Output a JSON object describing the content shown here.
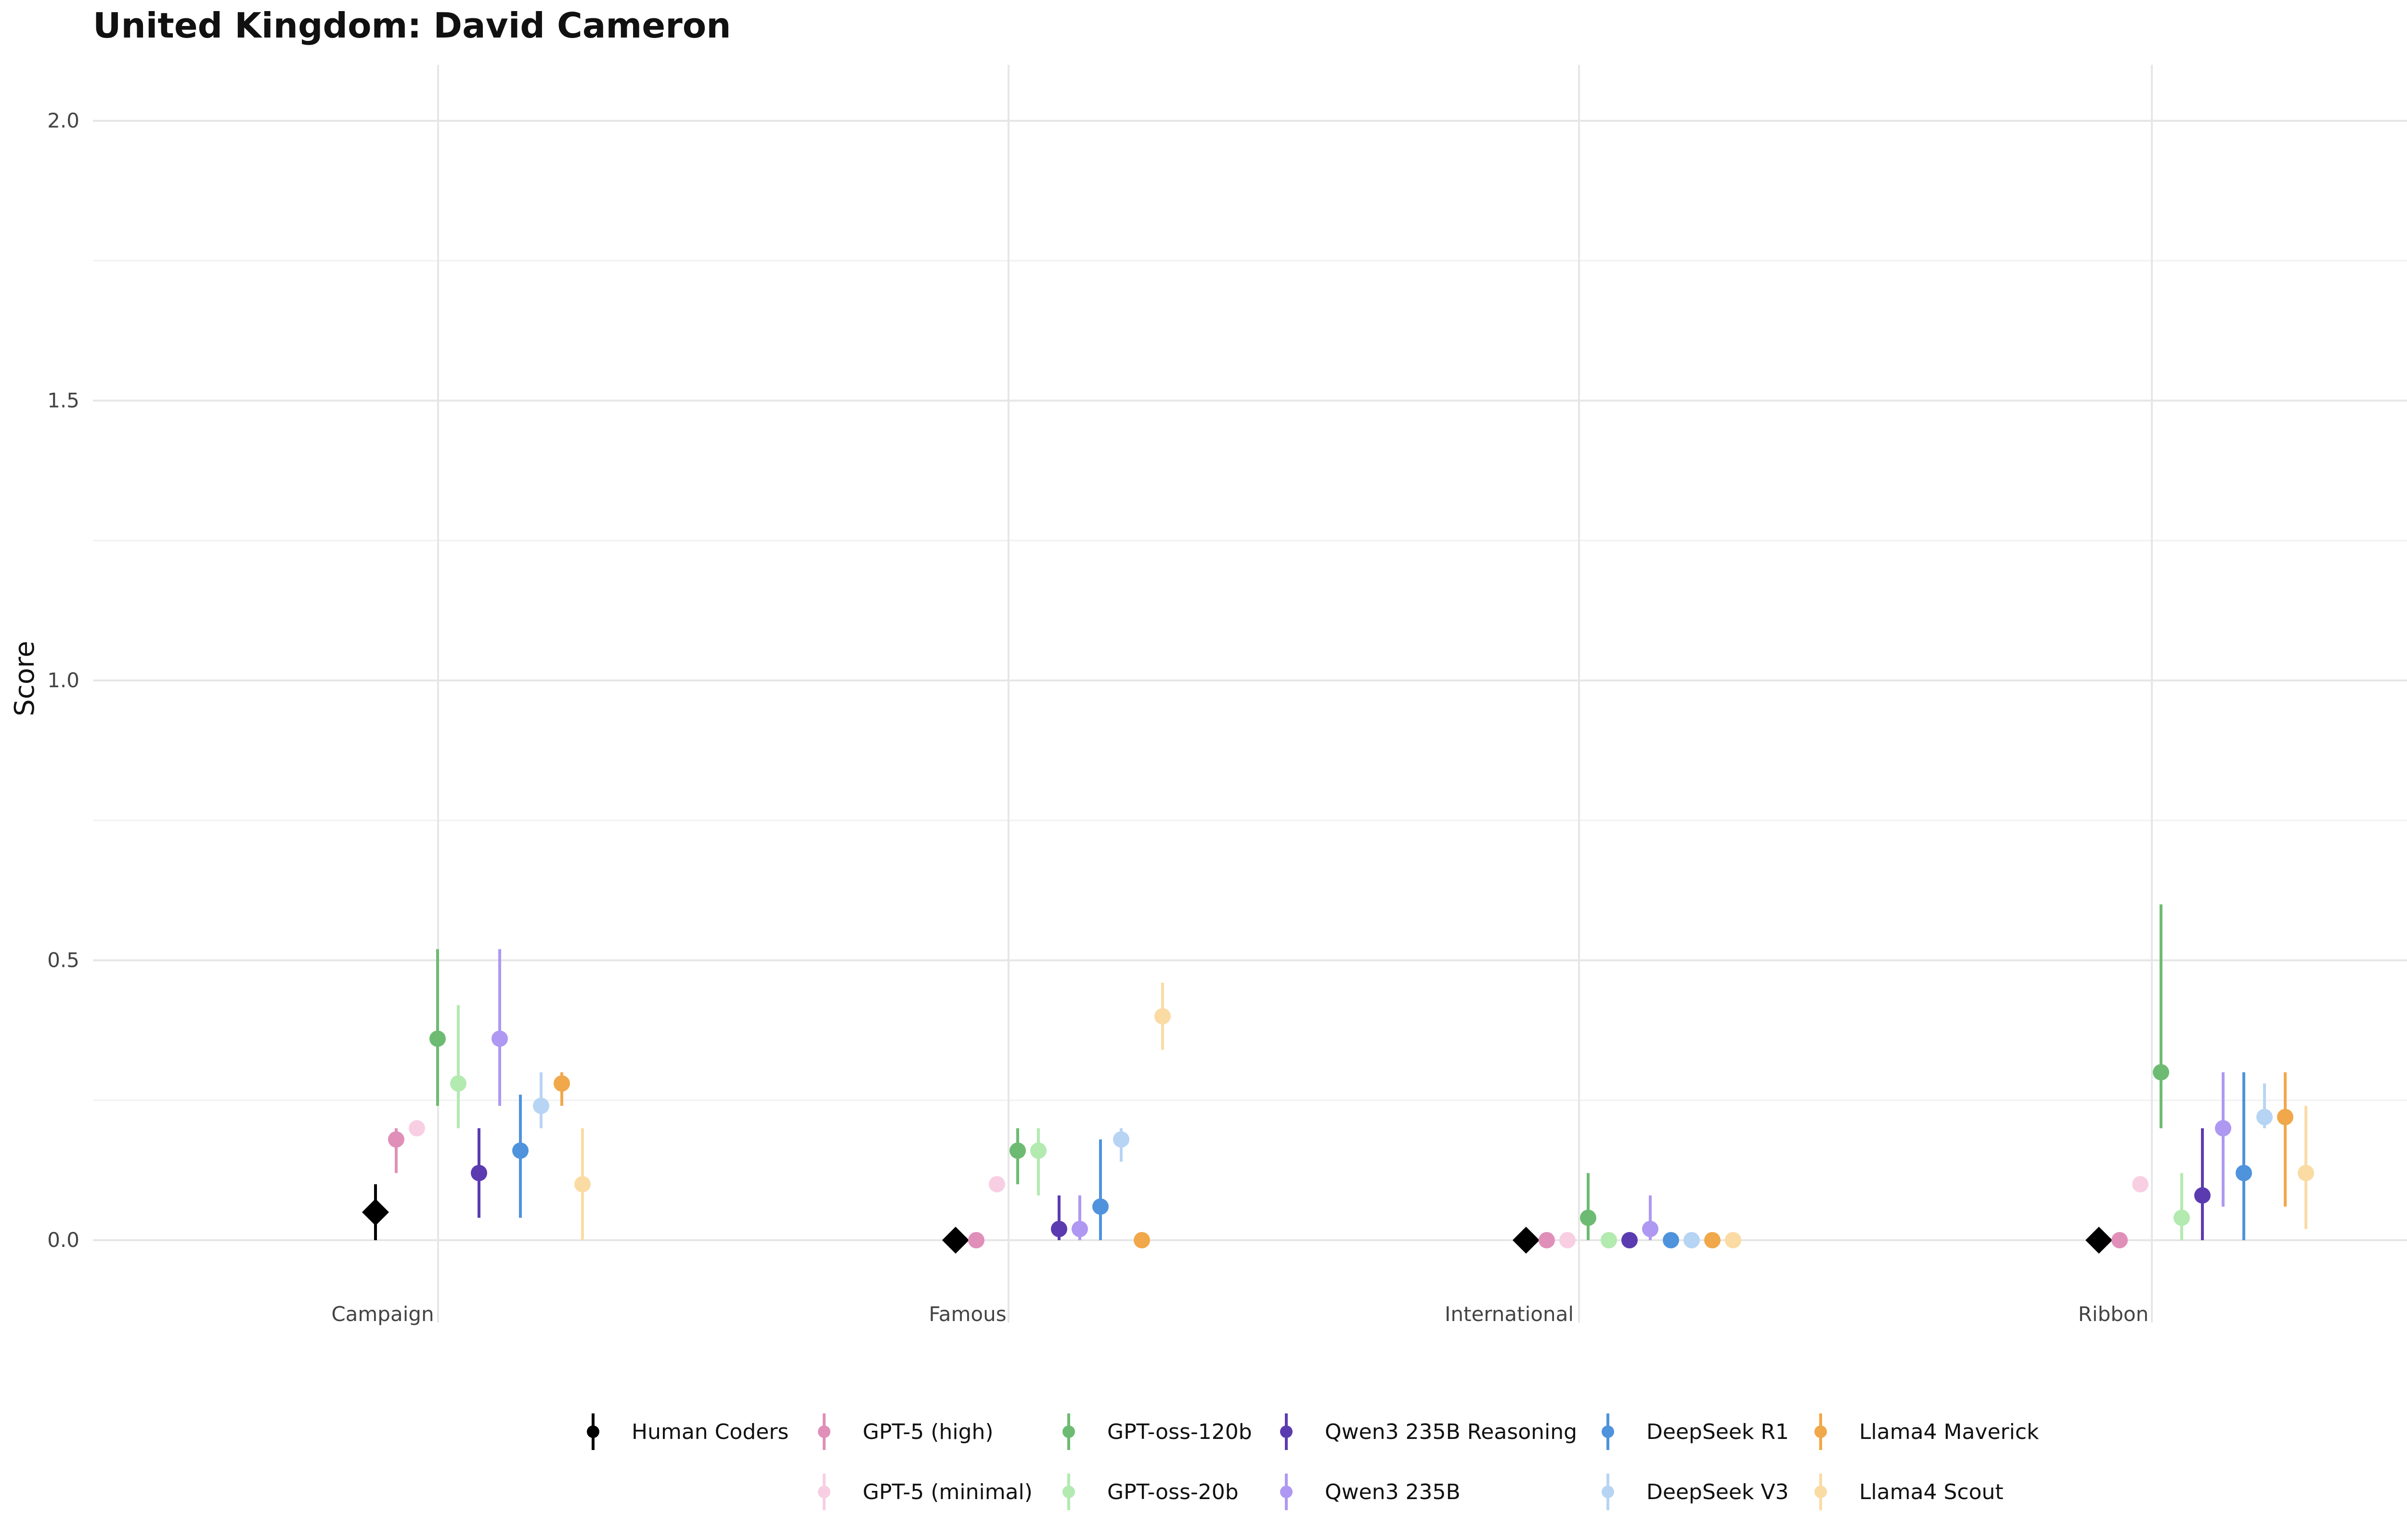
{
  "chart_data": {
    "type": "scatter",
    "title": "United Kingdom: David Cameron",
    "xlabel": "",
    "ylabel": "Score",
    "categories": [
      "Campaign",
      "Famous",
      "International",
      "Ribbon"
    ],
    "ylim": [
      -0.1,
      2.1
    ],
    "yticks": [
      "0.0",
      "0.5",
      "1.0",
      "1.5",
      "2.0"
    ],
    "grid": true,
    "legend_position": "bottom",
    "series": [
      {
        "name": "Human Coders",
        "color": "#000000",
        "marker": "diamond",
        "values": [
          0.05,
          0.0,
          0.0,
          0.0
        ],
        "low": [
          0.0,
          0.0,
          0.0,
          0.0
        ],
        "high": [
          0.1,
          0.0,
          0.0,
          0.0
        ]
      },
      {
        "name": "GPT-5 (high)",
        "color": "#e08fb8",
        "marker": "circle",
        "values": [
          0.18,
          0.0,
          0.0,
          0.0
        ],
        "low": [
          0.12,
          0.0,
          0.0,
          0.0
        ],
        "high": [
          0.2,
          0.0,
          0.0,
          0.0
        ]
      },
      {
        "name": "GPT-5 (minimal)",
        "color": "#f8cfe2",
        "marker": "circle",
        "values": [
          0.2,
          0.1,
          0.0,
          0.1
        ],
        "low": [
          0.2,
          0.1,
          0.0,
          0.1
        ],
        "high": [
          0.2,
          0.1,
          0.0,
          0.1
        ]
      },
      {
        "name": "GPT-oss-120b",
        "color": "#6dbb72",
        "marker": "circle",
        "values": [
          0.36,
          0.16,
          0.04,
          0.3
        ],
        "low": [
          0.24,
          0.1,
          0.0,
          0.2
        ],
        "high": [
          0.52,
          0.2,
          0.12,
          0.6
        ]
      },
      {
        "name": "GPT-oss-20b",
        "color": "#b2eab0",
        "marker": "circle",
        "values": [
          0.28,
          0.16,
          0.0,
          0.04
        ],
        "low": [
          0.2,
          0.08,
          0.0,
          0.0
        ],
        "high": [
          0.42,
          0.2,
          0.0,
          0.12
        ]
      },
      {
        "name": "Qwen3 235B Reasoning",
        "color": "#5b3bb0",
        "marker": "circle",
        "values": [
          0.12,
          0.02,
          0.0,
          0.08
        ],
        "low": [
          0.04,
          0.0,
          0.0,
          0.0
        ],
        "high": [
          0.2,
          0.08,
          0.0,
          0.2
        ]
      },
      {
        "name": "Qwen3 235B",
        "color": "#ae98f2",
        "marker": "circle",
        "values": [
          0.36,
          0.02,
          0.02,
          0.2
        ],
        "low": [
          0.24,
          0.0,
          0.0,
          0.06
        ],
        "high": [
          0.52,
          0.08,
          0.08,
          0.3
        ]
      },
      {
        "name": "DeepSeek R1",
        "color": "#4f93dc",
        "marker": "circle",
        "values": [
          0.16,
          0.06,
          0.0,
          0.12
        ],
        "low": [
          0.04,
          0.0,
          0.0,
          0.0
        ],
        "high": [
          0.26,
          0.18,
          0.0,
          0.3
        ]
      },
      {
        "name": "DeepSeek V3",
        "color": "#b7d4f4",
        "marker": "circle",
        "values": [
          0.24,
          0.18,
          0.0,
          0.22
        ],
        "low": [
          0.2,
          0.14,
          0.0,
          0.2
        ],
        "high": [
          0.3,
          0.2,
          0.0,
          0.28
        ]
      },
      {
        "name": "Llama4 Maverick",
        "color": "#f0a84a",
        "marker": "circle",
        "values": [
          0.28,
          0.0,
          0.0,
          0.22
        ],
        "low": [
          0.24,
          0.0,
          0.0,
          0.06
        ],
        "high": [
          0.3,
          0.0,
          0.0,
          0.3
        ]
      },
      {
        "name": "Llama4 Scout",
        "color": "#fbdba4",
        "marker": "circle",
        "values": [
          0.1,
          0.4,
          0.0,
          0.12
        ],
        "low": [
          0.0,
          0.34,
          0.0,
          0.02
        ],
        "high": [
          0.2,
          0.46,
          0.0,
          0.24
        ]
      }
    ],
    "legend_rows": [
      [
        "Human Coders",
        "GPT-5 (high)",
        "GPT-oss-120b",
        "Qwen3 235B Reasoning",
        "DeepSeek R1",
        "Llama4 Maverick"
      ],
      [
        "GPT-5 (minimal)",
        "GPT-oss-20b",
        "Qwen3 235B",
        "DeepSeek V3",
        "Llama4 Scout"
      ]
    ]
  }
}
